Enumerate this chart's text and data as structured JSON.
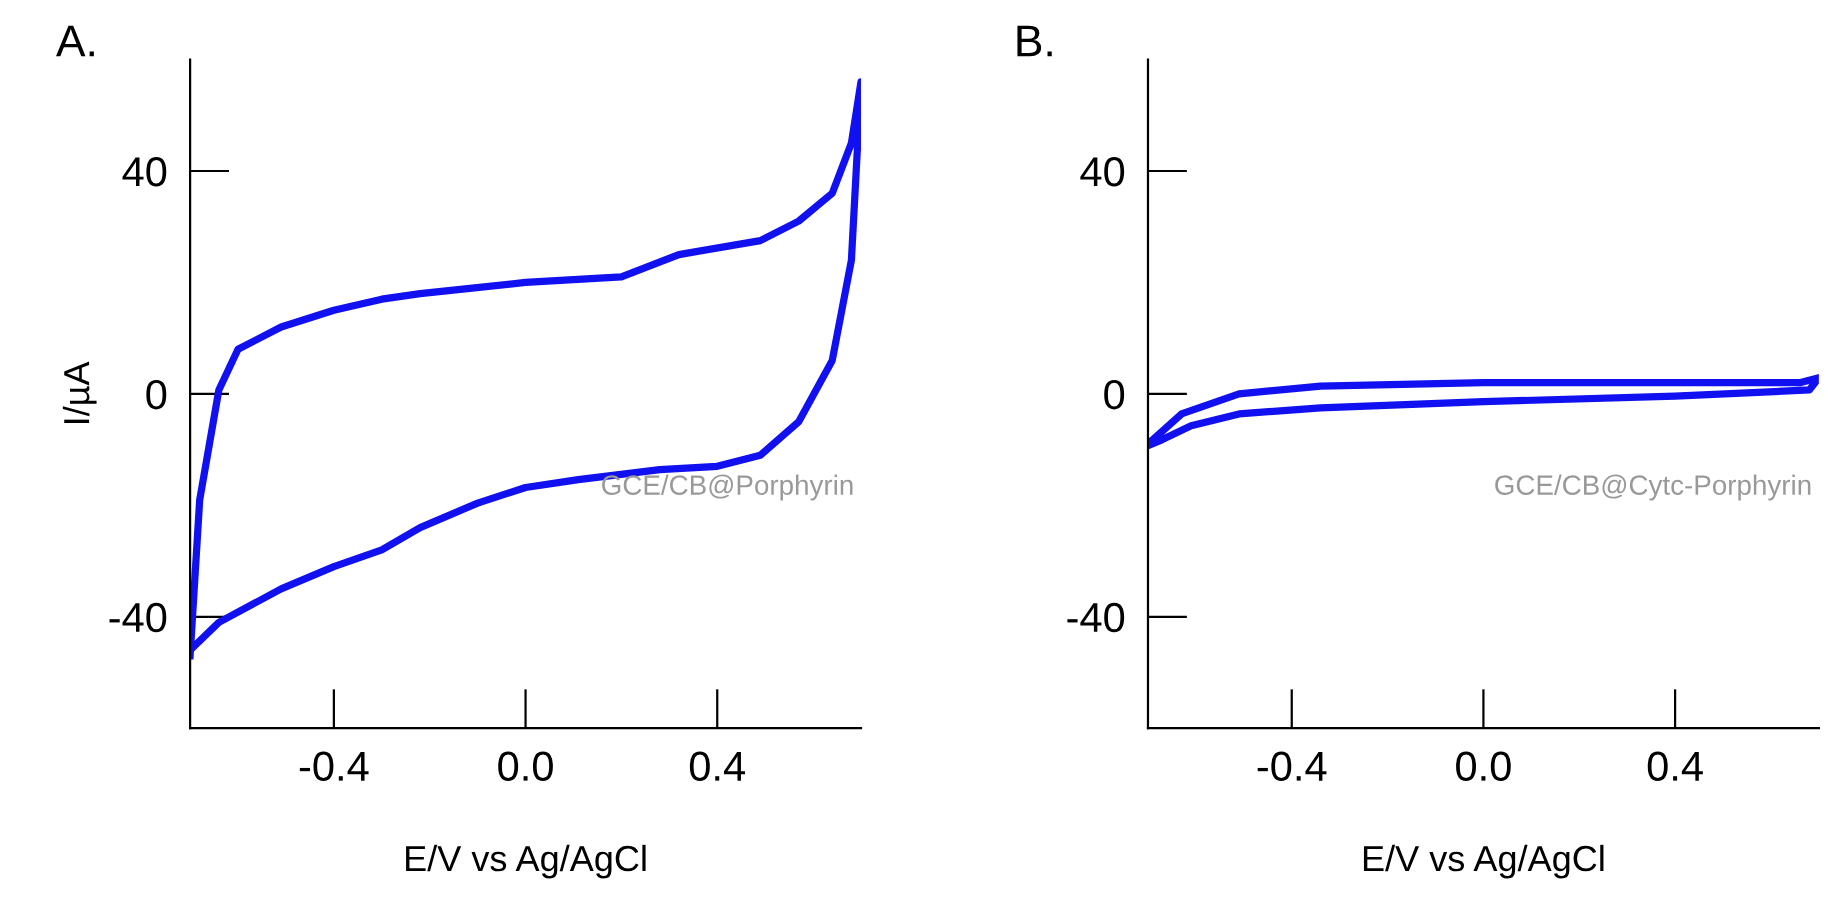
{
  "chart_data": [
    {
      "type": "line",
      "title": "A.",
      "xlabel": "E/V vs Ag/AgCl",
      "ylabel": "I/µA",
      "xlim": [
        -0.7,
        0.7
      ],
      "ylim": [
        -60,
        60
      ],
      "xticks": [
        {
          "value": -0.4,
          "label": "-0.4"
        },
        {
          "value": 0,
          "label": "0.0"
        },
        {
          "value": 0.4,
          "label": "0.4"
        }
      ],
      "yticks": [
        -40,
        0,
        40
      ],
      "grid": false,
      "legend": false,
      "annotations": [
        "GCE/CB@Porphyrin"
      ],
      "series": [
        {
          "color": "#1010f0",
          "x": [
            -0.7,
            -0.68,
            -0.64,
            -0.6,
            -0.51,
            -0.4,
            -0.3,
            -0.22,
            0.0,
            0.2,
            0.32,
            0.49,
            0.57,
            0.64,
            0.68,
            0.7,
            0.68,
            0.64,
            0.57,
            0.49,
            0.4,
            0.28,
            0.11,
            0.0,
            -0.1,
            -0.22,
            -0.3,
            -0.4,
            -0.51,
            -0.64,
            -0.7
          ],
          "values": [
            -47,
            -19,
            0.7,
            8,
            12,
            15,
            17,
            18,
            20,
            21,
            25,
            27.5,
            31,
            36,
            45,
            56,
            24,
            6,
            -5,
            -11,
            -13,
            -13.6,
            -15.4,
            -16.8,
            -19.6,
            -24,
            -28,
            -31,
            -35,
            -41,
            -46
          ]
        }
      ]
    },
    {
      "type": "line",
      "title": "B.",
      "xlabel": "E/V vs Ag/AgCl",
      "xlim": [
        -0.7,
        0.7
      ],
      "ylim": [
        -60,
        60
      ],
      "xticks": [
        {
          "value": -0.4,
          "label": "-0.4"
        },
        {
          "value": 0,
          "label": "0.0"
        },
        {
          "value": 0.4,
          "label": "0.4"
        }
      ],
      "yticks": [
        -40,
        0,
        40
      ],
      "grid": false,
      "legend": false,
      "annotations": [
        "GCE/CB@Cytc-Porphyrin"
      ],
      "series": [
        {
          "color": "#1010f0",
          "x": [
            -0.7,
            -0.63,
            -0.51,
            -0.34,
            0.0,
            0.4,
            0.66,
            0.7,
            0.68,
            0.4,
            0.0,
            -0.34,
            -0.51,
            -0.61,
            -0.67,
            -0.7
          ],
          "values": [
            -9,
            -3.6,
            0,
            1.4,
            2,
            2,
            2,
            2.9,
            0.7,
            -0.4,
            -1.4,
            -2.5,
            -3.6,
            -5.7,
            -8.2,
            -9.3
          ]
        }
      ]
    }
  ]
}
